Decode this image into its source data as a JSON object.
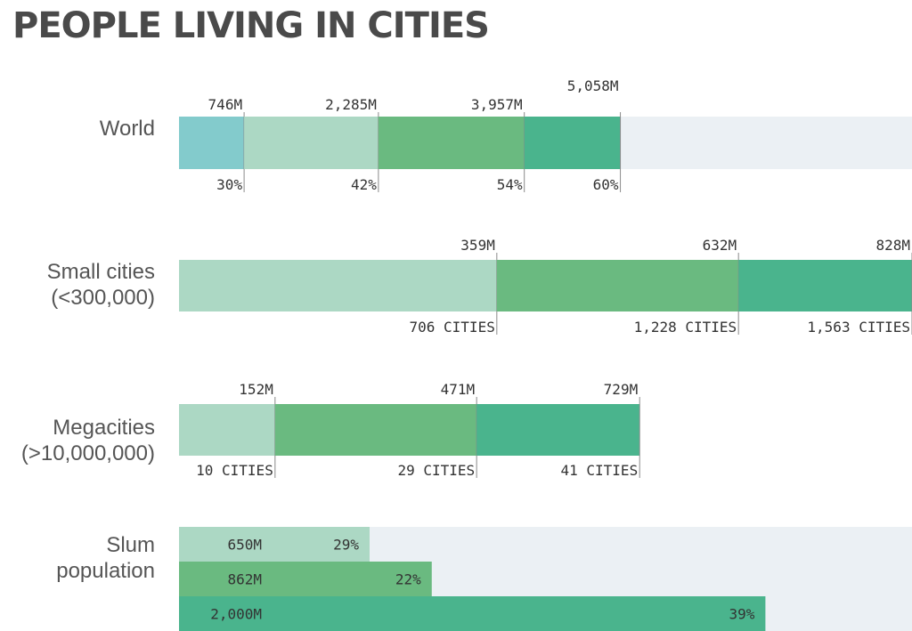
{
  "title": "PEOPLE LIVING IN CITIES",
  "colors": {
    "background_track": "#ebf0f4",
    "teal": "#83cbcc",
    "light_green": "#acd8c4",
    "green": "#6aba80",
    "dark_green": "#4ab48d",
    "text": "#333333",
    "title": "#4a4a4a"
  },
  "chart_data": [
    {
      "type": "bar",
      "name": "world",
      "label": [
        "World"
      ],
      "orientation": "horizontal-stacked-cumulative",
      "unit": "M people",
      "track": true,
      "segments": [
        {
          "value": 746,
          "value_label": "746M",
          "share_label": "30%",
          "color": "teal"
        },
        {
          "value": 2285,
          "value_label": "2,285M",
          "share_label": "42%",
          "color": "light_green"
        },
        {
          "value": 3957,
          "value_label": "3,957M",
          "share_label": "54%",
          "color": "green"
        },
        {
          "value": 5058,
          "value_label": "5,058M",
          "share_label": "60%",
          "color": "dark_green"
        }
      ]
    },
    {
      "type": "bar",
      "name": "small-cities",
      "label": [
        "Small cities",
        "(<300,000)"
      ],
      "orientation": "horizontal-stacked-cumulative",
      "unit": "M people",
      "track": false,
      "segments": [
        {
          "value": 359,
          "value_label": "359M",
          "count_label": "706 CITIES",
          "color": "light_green"
        },
        {
          "value": 632,
          "value_label": "632M",
          "count_label": "1,228 CITIES",
          "color": "green"
        },
        {
          "value": 828,
          "value_label": "828M",
          "count_label": "1,563 CITIES",
          "color": "dark_green"
        }
      ]
    },
    {
      "type": "bar",
      "name": "megacities",
      "label": [
        "Megacities",
        "(>10,000,000)"
      ],
      "orientation": "horizontal-stacked-cumulative",
      "unit": "M people",
      "track": false,
      "segments": [
        {
          "value": 152,
          "value_label": "152M",
          "count_label": "10 CITIES",
          "color": "light_green"
        },
        {
          "value": 471,
          "value_label": "471M",
          "count_label": "29 CITIES",
          "color": "green"
        },
        {
          "value": 729,
          "value_label": "729M",
          "count_label": "41 CITIES",
          "color": "dark_green"
        }
      ]
    },
    {
      "type": "bar",
      "name": "slum-population",
      "label": [
        "Slum",
        "population"
      ],
      "orientation": "horizontal",
      "unit": "M people",
      "track": true,
      "bars": [
        {
          "value": 650,
          "value_label": "650M",
          "share_label": "29%",
          "color": "light_green"
        },
        {
          "value": 862,
          "value_label": "862M",
          "share_label": "22%",
          "color": "green"
        },
        {
          "value": 2000,
          "value_label": "2,000M",
          "share_label": "39%",
          "color": "dark_green"
        }
      ]
    }
  ]
}
